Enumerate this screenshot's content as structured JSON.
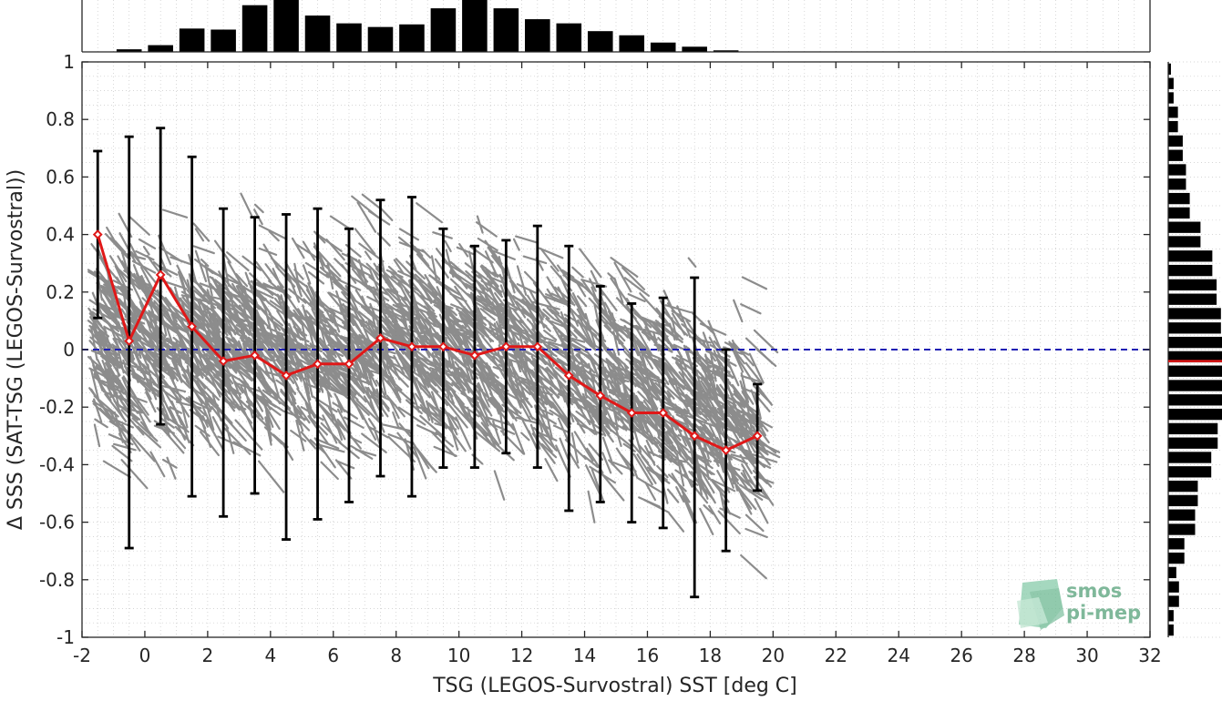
{
  "chart_data": {
    "type": "scatter",
    "xlabel": "TSG (LEGOS-Survostral) SST [deg C]",
    "ylabel": "Δ SSS (SAT-TSG (LEGOS-Survostral))",
    "xlim": [
      -2,
      32
    ],
    "ylim": [
      -1,
      1
    ],
    "x_ticks": [
      -2,
      0,
      2,
      4,
      6,
      8,
      10,
      12,
      14,
      16,
      18,
      20,
      22,
      24,
      26,
      28,
      30,
      32
    ],
    "x_tick_labels": [
      "-2",
      "0",
      "2",
      "4",
      "6",
      "8",
      "10",
      "12",
      "14",
      "16",
      "18",
      "20",
      "22",
      "24",
      "26",
      "28",
      "30",
      "32"
    ],
    "y_ticks": [
      -1,
      -0.8,
      -0.6,
      -0.4,
      -0.2,
      0,
      0.2,
      0.4,
      0.6,
      0.8,
      1
    ],
    "y_tick_labels": [
      "-1",
      "-0.8",
      "-0.6",
      "-0.4",
      "-0.2",
      "0",
      "0.2",
      "0.4",
      "0.6",
      "0.8",
      "1"
    ],
    "grid": "dotted",
    "reference_line": {
      "y": 0,
      "style": "dashed",
      "color": "#1f1fb4"
    },
    "scatter_color": "#808080",
    "binned_series": {
      "color": "#e01818",
      "errorbar_color": "#000000",
      "x": [
        -1.5,
        -0.5,
        0.5,
        1.5,
        2.5,
        3.5,
        4.5,
        5.5,
        6.5,
        7.5,
        8.5,
        9.5,
        10.5,
        11.5,
        12.5,
        13.5,
        14.5,
        15.5,
        16.5,
        17.5,
        18.5,
        19.5
      ],
      "mean": [
        0.4,
        0.03,
        0.26,
        0.08,
        -0.04,
        -0.02,
        -0.09,
        -0.05,
        -0.05,
        0.04,
        0.01,
        0.01,
        -0.02,
        0.01,
        0.01,
        -0.09,
        -0.16,
        -0.22,
        -0.22,
        -0.3,
        -0.35,
        -0.3
      ],
      "upper": [
        0.69,
        0.74,
        0.77,
        0.67,
        0.49,
        0.46,
        0.47,
        0.49,
        0.42,
        0.52,
        0.53,
        0.42,
        0.36,
        0.38,
        0.43,
        0.36,
        0.22,
        0.16,
        0.18,
        0.25,
        0.0,
        -0.12
      ],
      "lower": [
        0.11,
        -0.69,
        -0.26,
        -0.51,
        -0.58,
        -0.5,
        -0.66,
        -0.59,
        -0.53,
        -0.44,
        -0.51,
        -0.41,
        -0.41,
        -0.36,
        -0.41,
        -0.56,
        -0.53,
        -0.6,
        -0.62,
        -0.86,
        -0.7,
        -0.49
      ]
    },
    "top_histogram": {
      "x": [
        -1.5,
        -0.5,
        0.5,
        1.5,
        2.5,
        3.5,
        4.5,
        5.5,
        6.5,
        7.5,
        8.5,
        9.5,
        10.5,
        11.5,
        12.5,
        13.5,
        14.5,
        15.5,
        16.5,
        17.5,
        18.5
      ],
      "counts": [
        0.0,
        0.05,
        0.13,
        0.45,
        0.43,
        0.9,
        1.0,
        0.7,
        0.55,
        0.48,
        0.53,
        0.84,
        1.0,
        0.84,
        0.63,
        0.55,
        0.4,
        0.32,
        0.18,
        0.1,
        0.03
      ]
    },
    "right_histogram": {
      "y": [
        -0.975,
        -0.925,
        -0.875,
        -0.825,
        -0.775,
        -0.725,
        -0.675,
        -0.625,
        -0.575,
        -0.525,
        -0.475,
        -0.425,
        -0.375,
        -0.325,
        -0.275,
        -0.225,
        -0.175,
        -0.125,
        -0.075,
        -0.025,
        0.025,
        0.075,
        0.125,
        0.175,
        0.225,
        0.275,
        0.325,
        0.375,
        0.425,
        0.475,
        0.525,
        0.575,
        0.625,
        0.675,
        0.725,
        0.775,
        0.825,
        0.875,
        0.925,
        0.975
      ],
      "counts": [
        0.1,
        0.1,
        0.2,
        0.2,
        0.15,
        0.3,
        0.3,
        0.5,
        0.5,
        0.55,
        0.55,
        0.8,
        0.8,
        0.92,
        0.92,
        1.0,
        1.0,
        1.0,
        1.0,
        1.0,
        1.0,
        0.98,
        0.98,
        0.9,
        0.9,
        0.82,
        0.82,
        0.6,
        0.6,
        0.4,
        0.4,
        0.33,
        0.33,
        0.27,
        0.27,
        0.18,
        0.18,
        0.1,
        0.1,
        0.05
      ]
    },
    "right_histogram_mean": -0.04
  },
  "logo": {
    "line1": "smos",
    "line2": "pi-mep",
    "color": "#7fb89a"
  }
}
